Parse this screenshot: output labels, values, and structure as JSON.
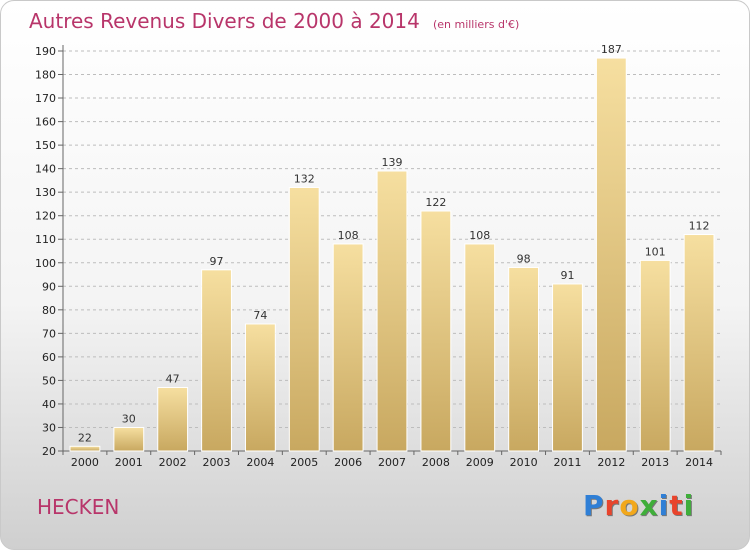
{
  "header": {
    "title": "Autres Revenus Divers de 2000 à 2014",
    "subtitle": "(en milliers d'€)"
  },
  "footer": {
    "city": "HECKEN",
    "logo_letters": [
      "P",
      "r",
      "o",
      "x",
      "i",
      "t",
      "i"
    ],
    "logo_colors": [
      "#2f7fd6",
      "#e8442c",
      "#f2a81c",
      "#3fae3a",
      "#2f7fd6",
      "#e8442c",
      "#3fae3a"
    ]
  },
  "colors": {
    "bar_top": "#f6dfa0",
    "bar_bottom": "#c8a860",
    "grid": "#bdbdbd"
  },
  "chart_data": {
    "type": "bar",
    "categories": [
      "2000",
      "2001",
      "2002",
      "2003",
      "2004",
      "2005",
      "2006",
      "2007",
      "2008",
      "2009",
      "2010",
      "2011",
      "2012",
      "2013",
      "2014"
    ],
    "values": [
      22,
      30,
      47,
      97,
      74,
      132,
      108,
      139,
      122,
      108,
      98,
      91,
      187,
      101,
      112
    ],
    "ylim": [
      20,
      190
    ],
    "yticks": [
      20,
      30,
      40,
      50,
      60,
      70,
      80,
      90,
      100,
      110,
      120,
      130,
      140,
      150,
      160,
      170,
      180,
      190
    ],
    "grid": true
  }
}
